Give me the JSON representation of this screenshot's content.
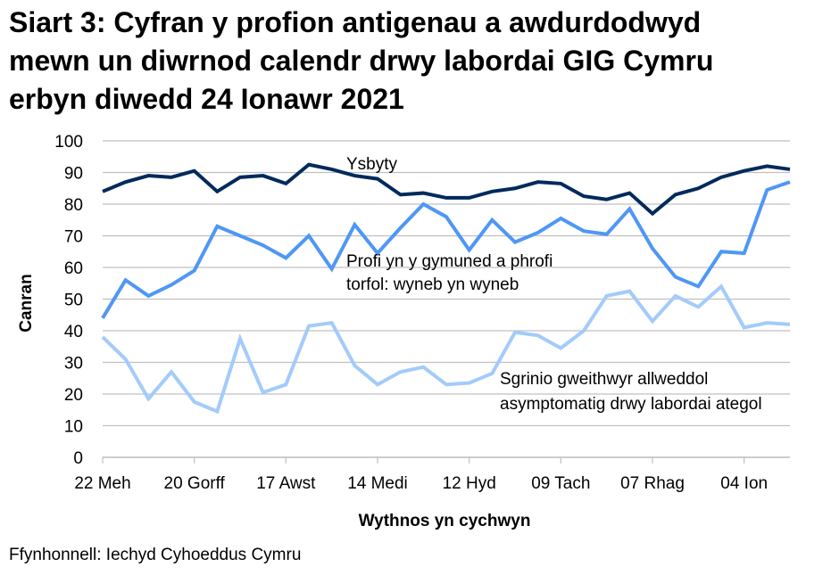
{
  "chart_data": {
    "type": "line",
    "title": [
      "Siart 3: Cyfran y profion antigenau a awdurdodwyd",
      "mewn un diwrnod calendr drwy labordai GIG Cymru",
      "erbyn diwedd 24 Ionawr 2021"
    ],
    "xlabel": "Wythnos yn cychwyn",
    "ylabel": "Canran",
    "ylim": [
      0,
      100
    ],
    "yticks": [
      0,
      10,
      20,
      30,
      40,
      50,
      60,
      70,
      80,
      90,
      100
    ],
    "xtick_labels": [
      "22 Meh",
      "20 Gorff",
      "17 Awst",
      "14 Medi",
      "12 Hyd",
      "09 Tach",
      "07 Rhag",
      "04 Ion"
    ],
    "grid": true,
    "series": [
      {
        "name": "Ysbyty",
        "color": "#002a5c",
        "values": [
          84,
          87,
          89,
          88.5,
          90.5,
          84,
          88.5,
          89,
          86.5,
          92.5,
          91,
          89,
          88,
          83,
          83.5,
          82,
          82,
          84,
          85,
          87,
          86.5,
          82.5,
          81.5,
          83.5,
          77,
          83,
          85,
          88.5,
          90.5,
          92,
          91
        ]
      },
      {
        "name": "Profi yn y gymuned a phrofi torfol: wyneb yn wyneb",
        "name_lines": [
          "Profi yn y gymuned a phrofi",
          "torfol: wyneb yn wyneb"
        ],
        "color": "#4f97f5",
        "values": [
          44,
          56,
          51,
          54.5,
          59,
          73,
          70,
          67,
          63,
          70,
          59.5,
          73.5,
          64.5,
          72.5,
          80,
          76,
          65.5,
          75,
          68,
          71,
          75.5,
          71.5,
          70.5,
          78.5,
          66,
          57,
          54,
          65,
          64.5,
          84.5,
          87
        ]
      },
      {
        "name": "Sgrinio gweithwyr allweddol asymptomatig drwy labordai ategol",
        "name_lines": [
          "Sgrinio gweithwyr allweddol",
          "asymptomatig drwy labordai ategol"
        ],
        "color": "#a3cbfb",
        "values": [
          38,
          31,
          18.5,
          27,
          17.5,
          14.5,
          37.5,
          20.5,
          23,
          41.5,
          42.5,
          29,
          23,
          27,
          28.5,
          23,
          23.5,
          26.5,
          39.5,
          38.5,
          34.5,
          40,
          51,
          52.5,
          43,
          51,
          47.5,
          54,
          41,
          42.5,
          42
        ]
      }
    ]
  },
  "source": "Ffynhonnell: Iechyd Cyhoeddus Cymru"
}
